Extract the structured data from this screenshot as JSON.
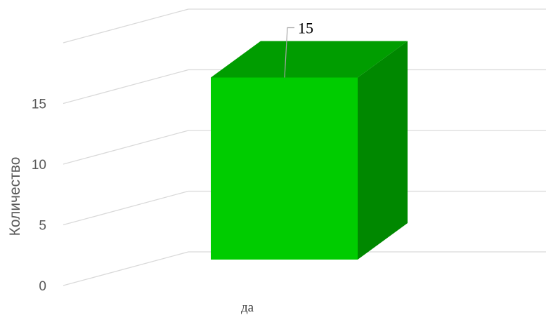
{
  "chart_data": {
    "type": "bar",
    "style": "3d-column",
    "categories": [
      "да"
    ],
    "values": [
      15
    ],
    "data_labels": [
      "15"
    ],
    "ylabel": "Количество",
    "xlabel": "",
    "ylim": [
      0,
      20
    ],
    "yticks": [
      "0",
      "5",
      "10",
      "15"
    ],
    "grid": true,
    "legend": "none",
    "colors": {
      "bar_front": "#00cc00",
      "bar_top": "#009d00",
      "bar_side": "#008800",
      "grid": "#d9d9d9",
      "text": "#595959"
    }
  }
}
